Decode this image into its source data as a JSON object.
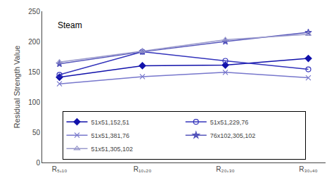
{
  "chart_data": {
    "type": "line",
    "title": "Steam",
    "y_label": "Residual Strength Value",
    "categories": [
      "R₅,₁₀",
      "R₁₀,₂₀",
      "R₂₀,₃₀",
      "R₃₀,₄₀"
    ],
    "series": [
      {
        "name": "51x51,152,51",
        "color": "#1111AA",
        "marker": "diamond",
        "values": [
          141,
          160,
          161,
          172
        ]
      },
      {
        "name": "51x51,229,76",
        "color": "#3333BB",
        "marker": "circle-open",
        "values": [
          145,
          183,
          168,
          154
        ]
      },
      {
        "name": "51x51,381,76",
        "color": "#7777CC",
        "marker": "x-thin-open",
        "values": [
          130,
          142,
          149,
          140
        ]
      },
      {
        "name": "76x102,305,102",
        "color": "#5555BB",
        "marker": "star",
        "values": [
          163,
          183,
          200,
          215
        ]
      },
      {
        "name": "51x51,305,102",
        "color": "#9999CC",
        "marker": "triangle-up-open",
        "values": [
          166,
          184,
          203,
          212
        ]
      }
    ],
    "line_style": "solid",
    "ylim": [
      0,
      250
    ],
    "yticks": [
      0,
      50,
      100,
      150,
      200,
      250
    ],
    "grid": false,
    "legend": "lower center"
  }
}
